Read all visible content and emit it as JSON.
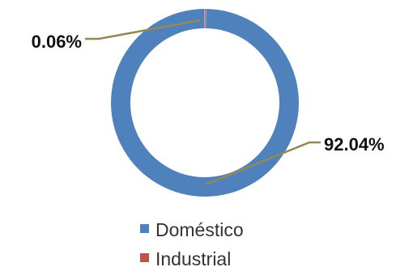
{
  "chart_data": {
    "type": "pie",
    "style": "donut",
    "categories": [
      "Doméstico",
      "Industrial"
    ],
    "values": [
      92.04,
      0.06
    ],
    "value_labels": [
      "92.04%",
      "0.06%"
    ],
    "unit": "%",
    "legend_position": "bottom",
    "colors": [
      "#4f81bd",
      "#c0504d"
    ],
    "leader_line_color": "#938953"
  }
}
